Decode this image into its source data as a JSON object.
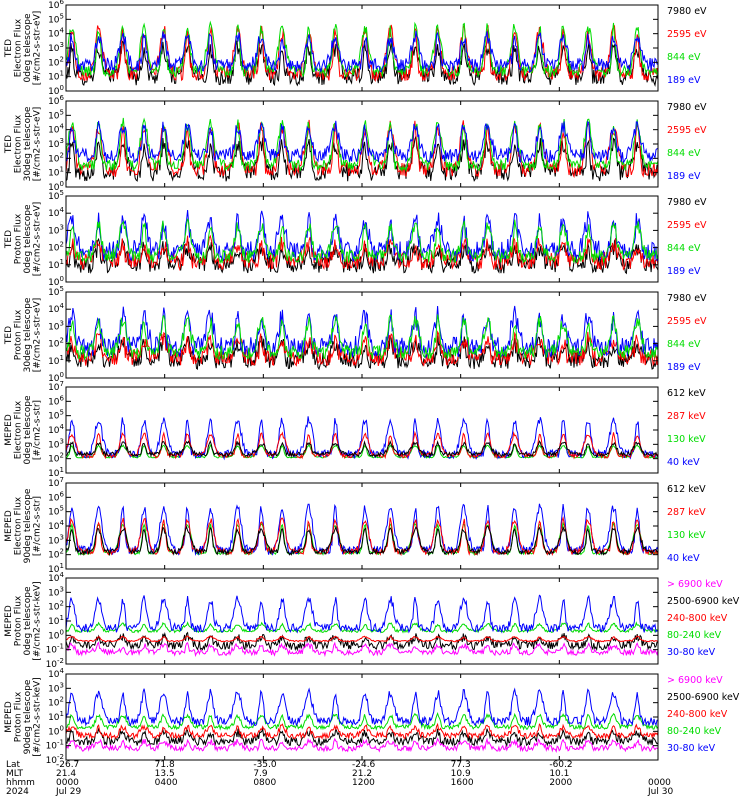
{
  "chart_data": {
    "type": "line",
    "x_axis": {
      "rows": [
        {
          "label": "Lat",
          "values": [
            "-26.7",
            "71.8",
            "-35.0",
            "-24.6",
            "77.3",
            "-60.2",
            ""
          ]
        },
        {
          "label": "MLT",
          "values": [
            "21.4",
            "13.5",
            "7.9",
            "21.2",
            "10.9",
            "10.1",
            ""
          ]
        },
        {
          "label": "hhmm",
          "values": [
            "0000",
            "0400",
            "0800",
            "1200",
            "1600",
            "2000",
            "0000"
          ]
        },
        {
          "label": "2024",
          "values": [
            "Jul 29",
            "",
            "",
            "",
            "",
            "",
            "Jul 30"
          ]
        }
      ]
    },
    "panels": [
      {
        "ylabel_lines": [
          "TED",
          "Electron Flux",
          "0deg telescope",
          "[#/cm2-s-str-eV]"
        ],
        "ylog_range": [
          0,
          6
        ],
        "y_ticks": [
          {
            "b": "10",
            "e": "0"
          },
          {
            "b": "10",
            "e": "1"
          },
          {
            "b": "10",
            "e": "2"
          },
          {
            "b": "10",
            "e": "3"
          },
          {
            "b": "10",
            "e": "4"
          },
          {
            "b": "10",
            "e": "5"
          },
          {
            "b": "10",
            "e": "6"
          }
        ],
        "series": [
          {
            "name": "7980 eV",
            "color": "#000000",
            "base": 1.0,
            "amp": 2.0,
            "noise": 0.6
          },
          {
            "name": "2595 eV",
            "color": "#ff0000",
            "base": 1.2,
            "amp": 3.0,
            "noise": 0.5
          },
          {
            "name": "844 eV",
            "color": "#00dd00",
            "base": 1.4,
            "amp": 3.0,
            "noise": 0.4
          },
          {
            "name": "189 eV",
            "color": "#0000ff",
            "base": 1.8,
            "amp": 2.0,
            "noise": 0.5
          }
        ]
      },
      {
        "ylabel_lines": [
          "TED",
          "Electron Flux",
          "30deg telescope",
          "[#/cm2-s-str-eV]"
        ],
        "ylog_range": [
          0,
          6
        ],
        "y_ticks": [
          {
            "b": "10",
            "e": "0"
          },
          {
            "b": "10",
            "e": "1"
          },
          {
            "b": "10",
            "e": "2"
          },
          {
            "b": "10",
            "e": "3"
          },
          {
            "b": "10",
            "e": "4"
          },
          {
            "b": "10",
            "e": "5"
          },
          {
            "b": "10",
            "e": "6"
          }
        ],
        "series": [
          {
            "name": "7980 eV",
            "color": "#000000",
            "base": 1.0,
            "amp": 2.0,
            "noise": 0.6
          },
          {
            "name": "2595 eV",
            "color": "#ff0000",
            "base": 1.2,
            "amp": 3.0,
            "noise": 0.5
          },
          {
            "name": "844 eV",
            "color": "#00dd00",
            "base": 1.5,
            "amp": 3.0,
            "noise": 0.4
          },
          {
            "name": "189 eV",
            "color": "#0000ff",
            "base": 2.2,
            "amp": 2.0,
            "noise": 0.5
          }
        ]
      },
      {
        "ylabel_lines": [
          "TED",
          "Proton Flux",
          "0deg telescope",
          "[#/cm2-s-str-eV]"
        ],
        "ylog_range": [
          0,
          5
        ],
        "y_ticks": [
          {
            "b": "10",
            "e": "0"
          },
          {
            "b": "10",
            "e": "1"
          },
          {
            "b": "10",
            "e": "2"
          },
          {
            "b": "10",
            "e": "3"
          },
          {
            "b": "10",
            "e": "4"
          },
          {
            "b": "10",
            "e": "5"
          }
        ],
        "series": [
          {
            "name": "7980 eV",
            "color": "#000000",
            "base": 1.0,
            "amp": 1.0,
            "noise": 0.5
          },
          {
            "name": "2595 eV",
            "color": "#ff0000",
            "base": 1.2,
            "amp": 1.0,
            "noise": 0.5
          },
          {
            "name": "189 eV",
            "color": "#0000ff",
            "base": 1.8,
            "amp": 1.8,
            "noise": 0.6
          },
          {
            "name": "844 eV",
            "color": "#00dd00",
            "base": 1.5,
            "amp": 1.8,
            "noise": 0.4
          }
        ]
      },
      {
        "ylabel_lines": [
          "TED",
          "Proton Flux",
          "30deg telescope",
          "[#/cm2-s-str-eV]"
        ],
        "ylog_range": [
          0,
          5
        ],
        "y_ticks": [
          {
            "b": "10",
            "e": "0"
          },
          {
            "b": "10",
            "e": "1"
          },
          {
            "b": "10",
            "e": "2"
          },
          {
            "b": "10",
            "e": "3"
          },
          {
            "b": "10",
            "e": "4"
          },
          {
            "b": "10",
            "e": "5"
          }
        ],
        "series": [
          {
            "name": "7980 eV",
            "color": "#000000",
            "base": 1.0,
            "amp": 1.0,
            "noise": 0.5
          },
          {
            "name": "2595 eV",
            "color": "#ff0000",
            "base": 1.2,
            "amp": 1.0,
            "noise": 0.5
          },
          {
            "name": "189 eV",
            "color": "#0000ff",
            "base": 1.8,
            "amp": 1.8,
            "noise": 0.6
          },
          {
            "name": "844 eV",
            "color": "#00dd00",
            "base": 1.5,
            "amp": 1.8,
            "noise": 0.4
          }
        ]
      },
      {
        "ylabel_lines": [
          "MEPED",
          "Electron Flux",
          "0deg telescope",
          "[#/cm2-s-str]"
        ],
        "ylog_range": [
          1,
          7
        ],
        "y_ticks": [
          {
            "b": "10",
            "e": "1"
          },
          {
            "b": "10",
            "e": "2"
          },
          {
            "b": "10",
            "e": "3"
          },
          {
            "b": "10",
            "e": "4"
          },
          {
            "b": "10",
            "e": "5"
          },
          {
            "b": "10",
            "e": "6"
          },
          {
            "b": "10",
            "e": "7"
          }
        ],
        "series": [
          {
            "name": "130 keV",
            "color": "#00dd00",
            "base": 2.1,
            "amp": 0.8,
            "noise": 0.05
          },
          {
            "name": "40 keV",
            "color": "#0000ff",
            "base": 2.3,
            "amp": 2.4,
            "noise": 0.3
          },
          {
            "name": "287 keV",
            "color": "#ff0000",
            "base": 2.2,
            "amp": 1.5,
            "noise": 0.15
          },
          {
            "name": "612 keV",
            "color": "#000000",
            "base": 2.3,
            "amp": 0.8,
            "noise": 0.15
          }
        ]
      },
      {
        "ylabel_lines": [
          "MEPED",
          "Electron Flux",
          "90deg telescope",
          "[#/cm2-s-str]"
        ],
        "ylog_range": [
          1,
          7
        ],
        "y_ticks": [
          {
            "b": "10",
            "e": "1"
          },
          {
            "b": "10",
            "e": "2"
          },
          {
            "b": "10",
            "e": "3"
          },
          {
            "b": "10",
            "e": "4"
          },
          {
            "b": "10",
            "e": "5"
          },
          {
            "b": "10",
            "e": "6"
          },
          {
            "b": "10",
            "e": "7"
          }
        ],
        "series": [
          {
            "name": "130 keV",
            "color": "#00dd00",
            "base": 2.1,
            "amp": 2.0,
            "noise": 0.1
          },
          {
            "name": "40 keV",
            "color": "#0000ff",
            "base": 2.3,
            "amp": 3.0,
            "noise": 0.3
          },
          {
            "name": "287 keV",
            "color": "#ff0000",
            "base": 2.2,
            "amp": 2.2,
            "noise": 0.2
          },
          {
            "name": "612 keV",
            "color": "#000000",
            "base": 2.2,
            "amp": 1.6,
            "noise": 0.2
          }
        ]
      },
      {
        "ylabel_lines": [
          "MEPED",
          "Proton Flux",
          "0deg telescope",
          "[#/cm2-s-str-keV]"
        ],
        "ylog_range": [
          -2,
          4
        ],
        "y_ticks": [
          {
            "b": "10",
            "e": "-2"
          },
          {
            "b": "10",
            "e": "-1"
          },
          {
            "b": "10",
            "e": "0"
          },
          {
            "b": "10",
            "e": "1"
          },
          {
            "b": "10",
            "e": "2"
          },
          {
            "b": "10",
            "e": "3"
          },
          {
            "b": "10",
            "e": "4"
          }
        ],
        "series": [
          {
            "name": "2500-6900 keV",
            "color": "#000000",
            "base": -0.7,
            "amp": 0.6,
            "noise": 0.3
          },
          {
            "name": "> 6900 keV",
            "color": "#ff00ff",
            "base": -1.2,
            "amp": 0.5,
            "noise": 0.2
          },
          {
            "name": "240-800 keV",
            "color": "#ff0000",
            "base": -0.4,
            "amp": 0.3,
            "noise": 0.05
          },
          {
            "name": "80-240 keV",
            "color": "#00dd00",
            "base": 0.3,
            "amp": 0.5,
            "noise": 0.1
          },
          {
            "name": "30-80 keV",
            "color": "#0000ff",
            "base": 0.5,
            "amp": 2.0,
            "noise": 0.3
          }
        ]
      },
      {
        "ylabel_lines": [
          "MEPED",
          "Proton Flux",
          "90deg telescope",
          "[#/cm2-s-str-keV]"
        ],
        "ylog_range": [
          -2,
          4
        ],
        "y_ticks": [
          {
            "b": "10",
            "e": "-2"
          },
          {
            "b": "10",
            "e": "-1"
          },
          {
            "b": "10",
            "e": "0"
          },
          {
            "b": "10",
            "e": "1"
          },
          {
            "b": "10",
            "e": "2"
          },
          {
            "b": "10",
            "e": "3"
          },
          {
            "b": "10",
            "e": "4"
          }
        ],
        "series": [
          {
            "name": "2500-6900 keV",
            "color": "#000000",
            "base": -0.7,
            "amp": 0.6,
            "noise": 0.3
          },
          {
            "name": "> 6900 keV",
            "color": "#ff00ff",
            "base": -1.2,
            "amp": 0.5,
            "noise": 0.2
          },
          {
            "name": "240-800 keV",
            "color": "#ff0000",
            "base": -0.3,
            "amp": 0.6,
            "noise": 0.2
          },
          {
            "name": "80-240 keV",
            "color": "#00dd00",
            "base": 0.3,
            "amp": 0.8,
            "noise": 0.15
          },
          {
            "name": "30-80 keV",
            "color": "#0000ff",
            "base": 0.7,
            "amp": 2.0,
            "noise": 0.3
          }
        ]
      }
    ]
  }
}
